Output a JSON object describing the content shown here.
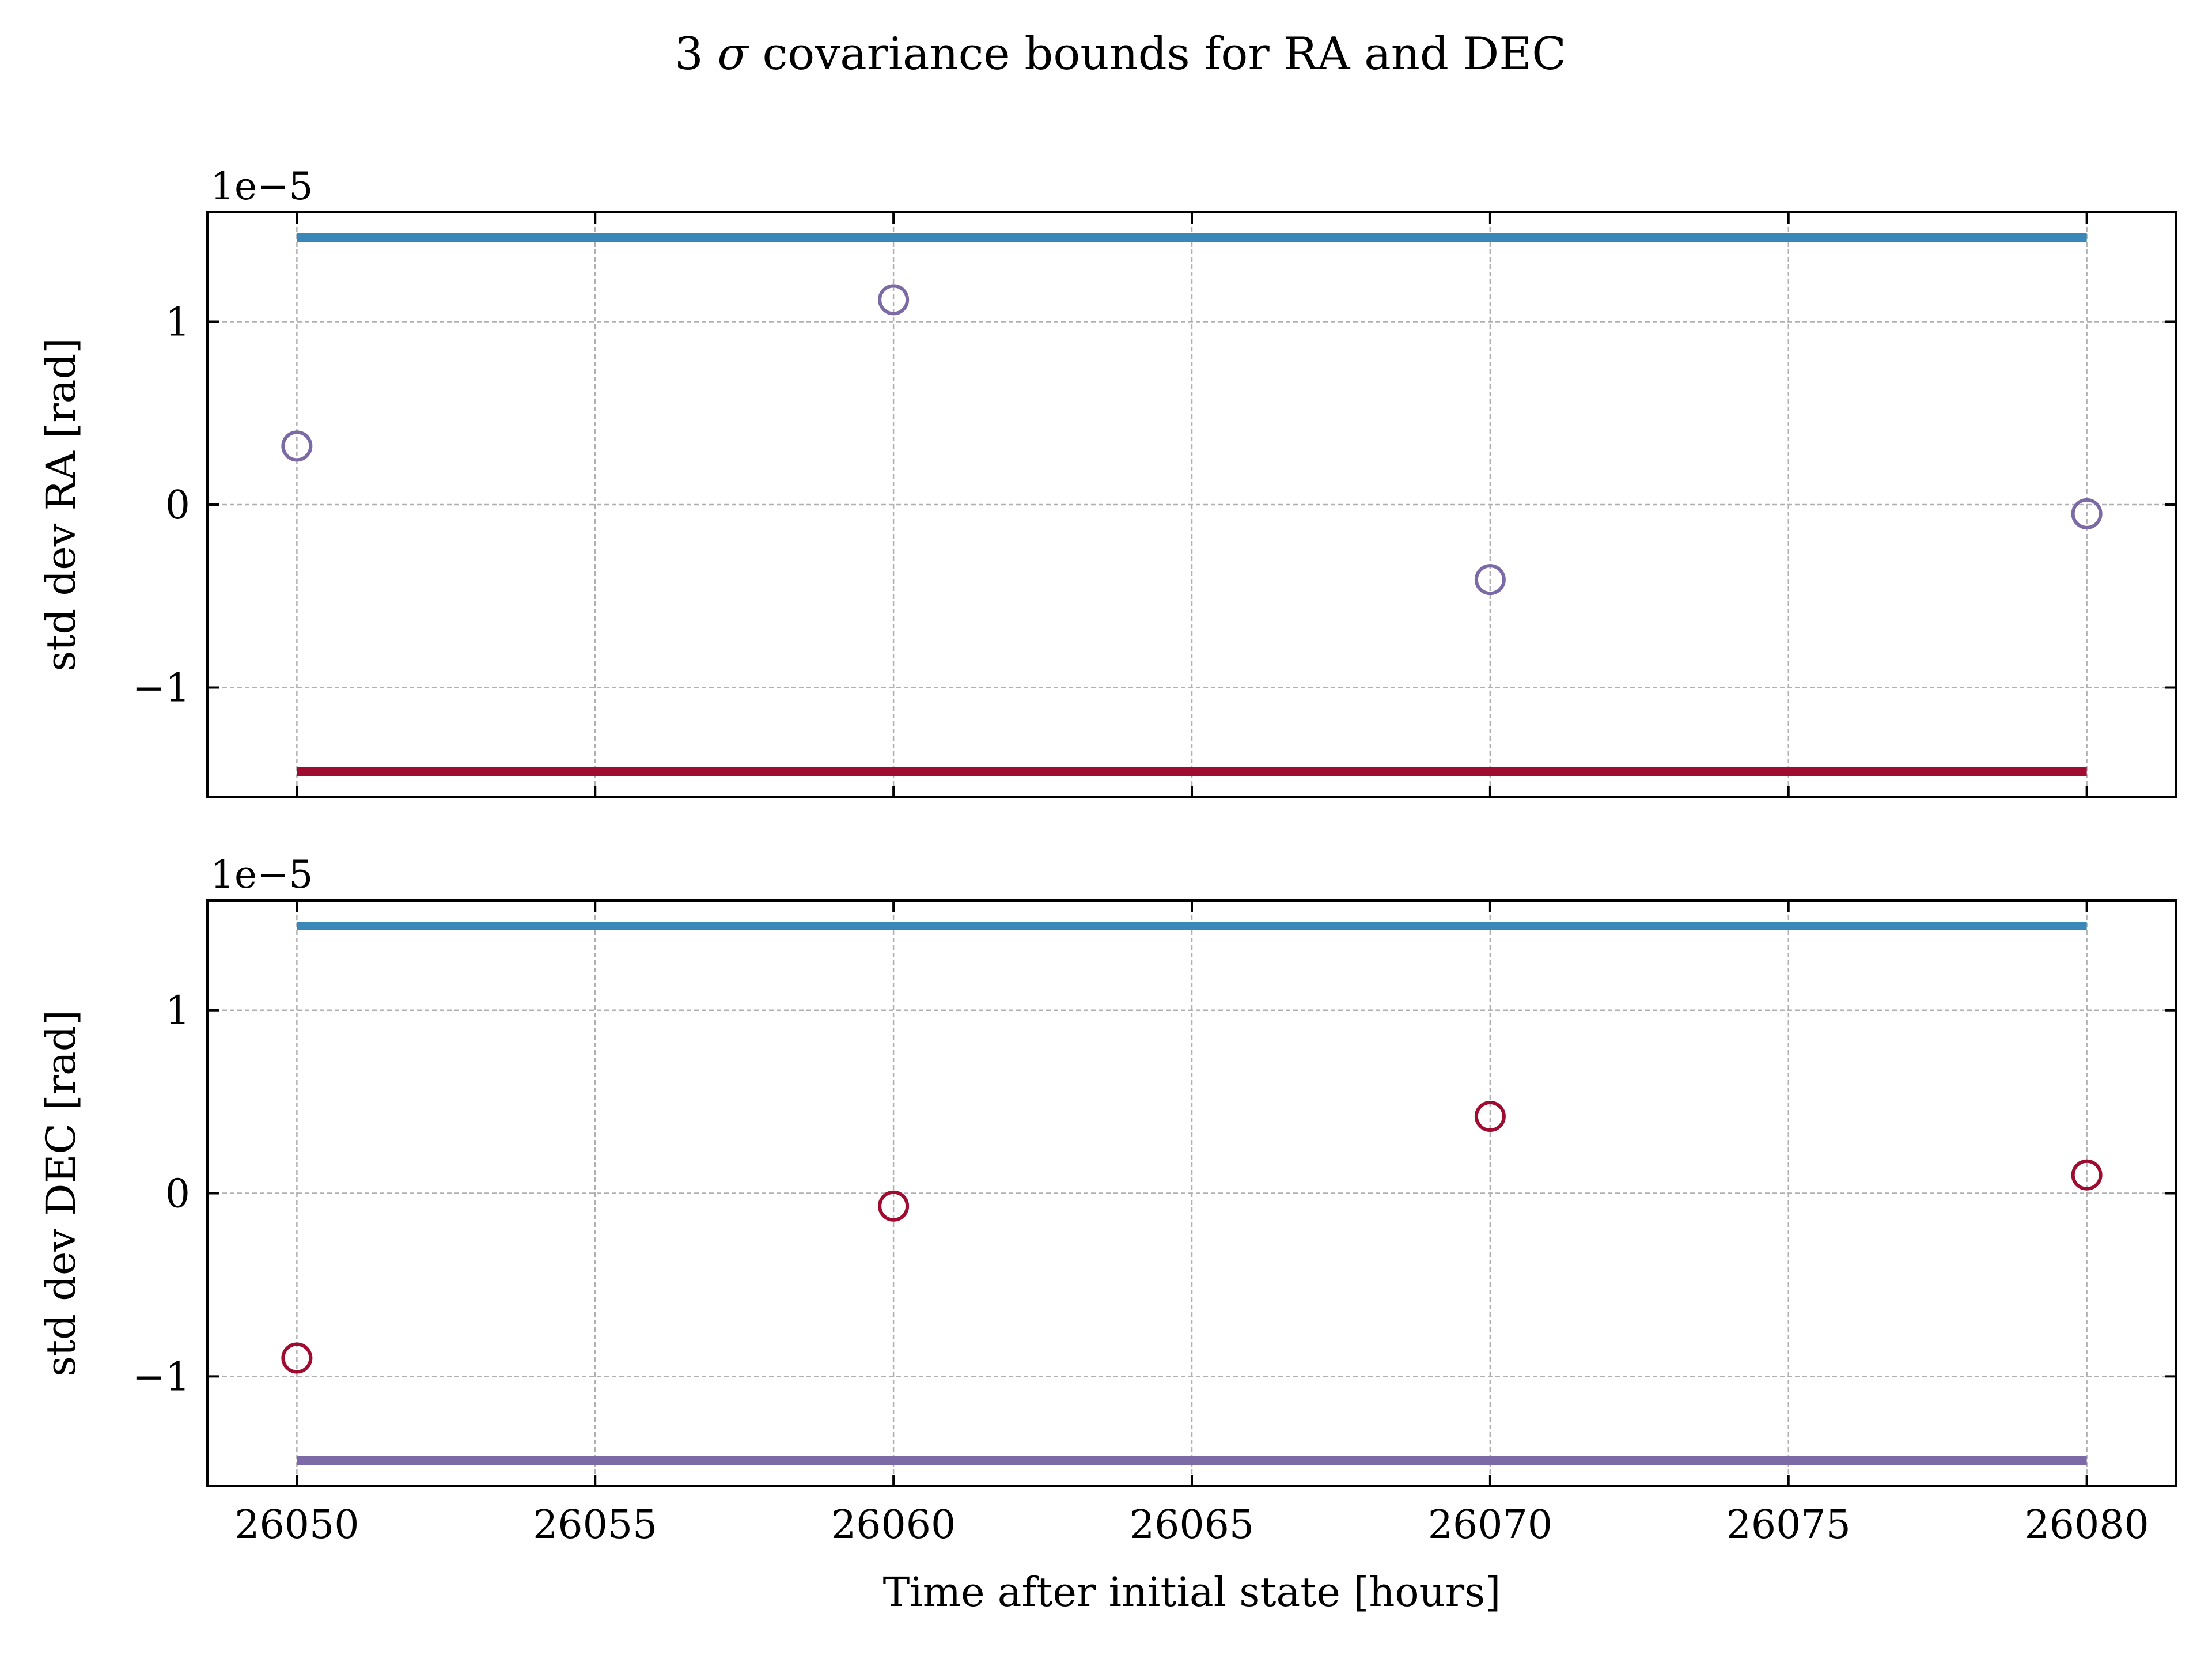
{
  "title_prefix": "3 ",
  "title_sigma": "σ",
  "title_suffix": " covariance bounds for RA and DEC",
  "colors": {
    "upper_bound": "#3a87b9",
    "ra_lower_bound": "#a00b30",
    "ra_points": "#7b6aa6",
    "dec_lower_bound": "#7b6aa6",
    "dec_points": "#a00b30",
    "grid": "#b0b0b0",
    "axes": "#000000"
  },
  "chart_data": [
    {
      "type": "scatter",
      "name": "ra",
      "ylabel": "std dev RA [rad]",
      "offset_text": "1e−5",
      "xlim": [
        26048.5,
        26081.5
      ],
      "ylim": [
        -1.6,
        1.6
      ],
      "x_ticks": [
        26050,
        26055,
        26060,
        26065,
        26070,
        26075,
        26080
      ],
      "y_ticks": [
        1,
        0,
        -1
      ],
      "y_tick_labels": [
        "1",
        "0",
        "−1"
      ],
      "points": {
        "x": [
          26050,
          26060,
          26070,
          26080
        ],
        "y": [
          0.32,
          1.12,
          -0.41,
          -0.05
        ]
      },
      "bound_upper": {
        "x": [
          26050,
          26080
        ],
        "y": 1.46
      },
      "bound_lower": {
        "x": [
          26050,
          26080
        ],
        "y": -1.46
      },
      "grid": true
    },
    {
      "type": "scatter",
      "name": "dec",
      "ylabel": "std dev DEC [rad]",
      "xlabel": "Time after initial state [hours]",
      "offset_text": "1e−5",
      "xlim": [
        26048.5,
        26081.5
      ],
      "ylim": [
        -1.6,
        1.6
      ],
      "x_ticks": [
        26050,
        26055,
        26060,
        26065,
        26070,
        26075,
        26080
      ],
      "x_tick_labels": [
        "26050",
        "26055",
        "26060",
        "26065",
        "26070",
        "26075",
        "26080"
      ],
      "y_ticks": [
        1,
        0,
        -1
      ],
      "y_tick_labels": [
        "1",
        "0",
        "−1"
      ],
      "points": {
        "x": [
          26050,
          26060,
          26070,
          26080
        ],
        "y": [
          -0.9,
          -0.07,
          0.42,
          0.1
        ]
      },
      "bound_upper": {
        "x": [
          26050,
          26080
        ],
        "y": 1.46
      },
      "bound_lower": {
        "x": [
          26050,
          26080
        ],
        "y": -1.46
      },
      "grid": true
    }
  ]
}
